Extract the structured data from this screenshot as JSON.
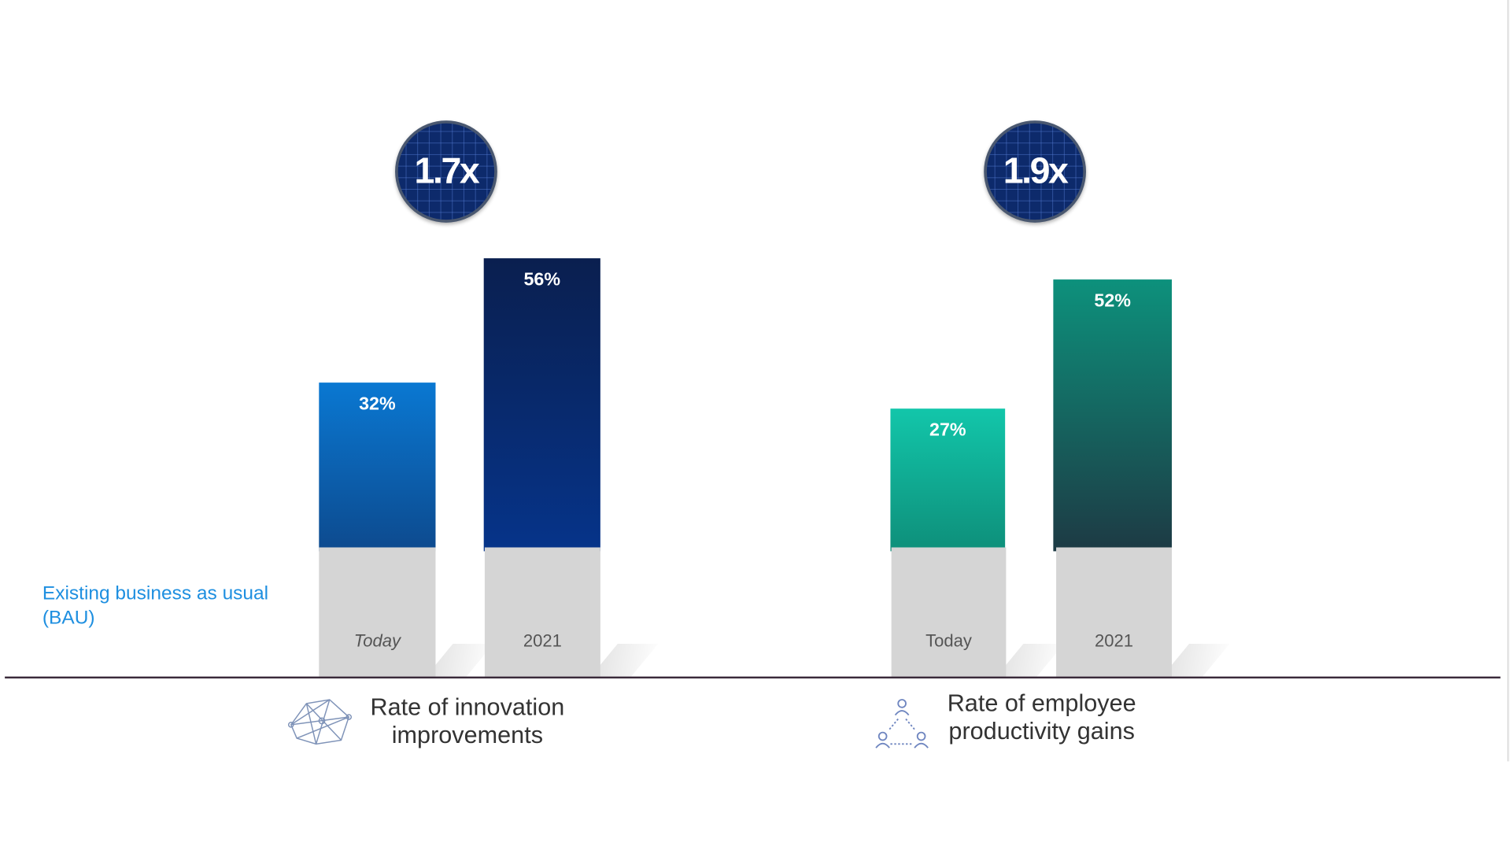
{
  "chart_data": {
    "type": "bar",
    "title": "",
    "baseline_label": "Existing business as usual (BAU)",
    "groups": [
      {
        "name": "Rate of innovation improvements",
        "caption_lines": [
          "Rate of innovation",
          "improvements"
        ],
        "icon": "network-icon",
        "multiplier": "1.7x",
        "categories": [
          "Today",
          "2021"
        ],
        "values": [
          32,
          56
        ],
        "value_labels": [
          "32%",
          "56%"
        ],
        "colors": [
          "#0a72c8",
          "#0b2a6e"
        ]
      },
      {
        "name": "Rate of employee productivity gains",
        "caption_lines": [
          "Rate of employee",
          "productivity gains"
        ],
        "icon": "people-network-icon",
        "multiplier": "1.9x",
        "categories": [
          "Today",
          "2021"
        ],
        "values": [
          27,
          52
        ],
        "value_labels": [
          "27%",
          "52%"
        ],
        "colors": [
          "#12c3a7",
          "#0f8a74"
        ]
      }
    ],
    "xlabel": "",
    "ylabel": "",
    "grid": false
  },
  "bau_lines": [
    "Existing business as usual",
    "(BAU)"
  ]
}
